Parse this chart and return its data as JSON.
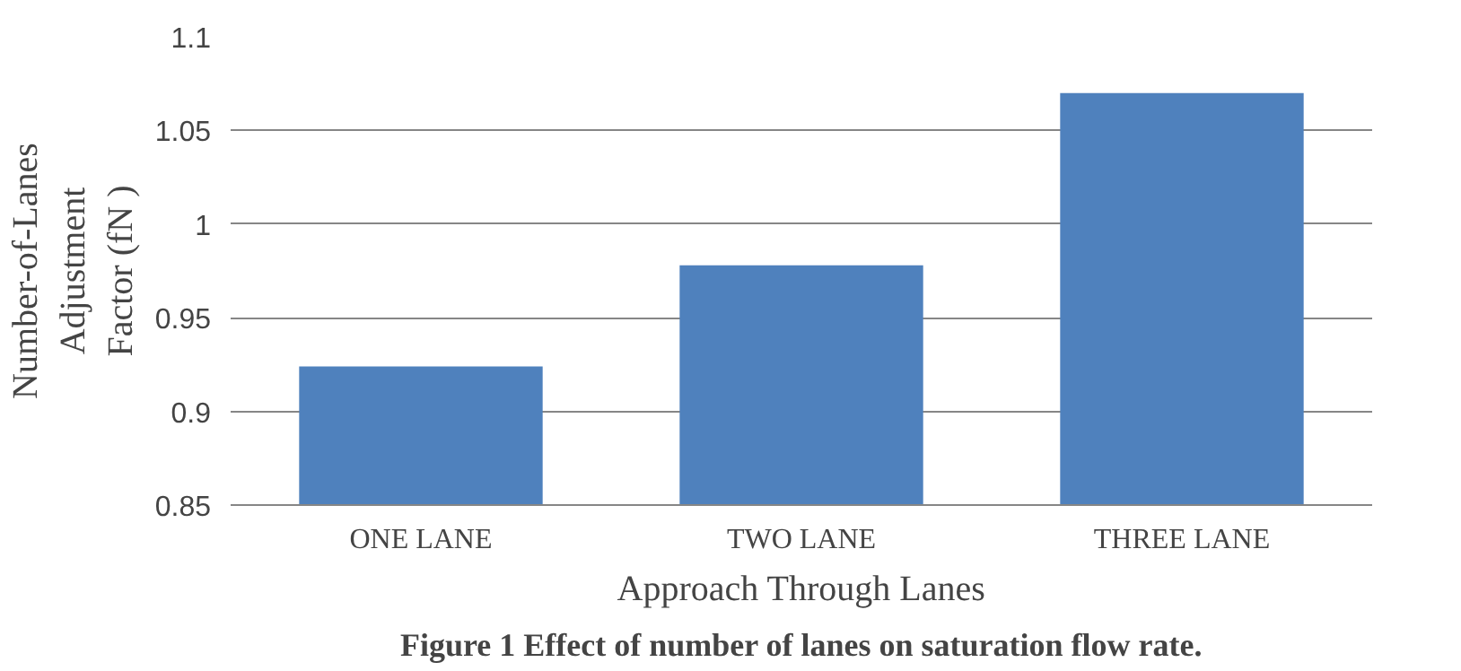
{
  "chart_data": {
    "type": "bar",
    "categories": [
      "ONE LANE",
      "TWO LANE",
      "THREE LANE"
    ],
    "values": [
      0.924,
      0.978,
      1.07
    ],
    "color": "#4f81bd",
    "ylim": [
      0.85,
      1.1
    ],
    "yticks": [
      0.85,
      0.9,
      0.95,
      1,
      1.05,
      1.1
    ],
    "grid": "y",
    "xlabel": "Approach Through Lanes",
    "ylabel": "Number-of-Lanes\nAdjustment\nFactor (fN )",
    "annotations": [
      "Figure 1 Effect of number of lanes on saturation flow rate."
    ]
  }
}
